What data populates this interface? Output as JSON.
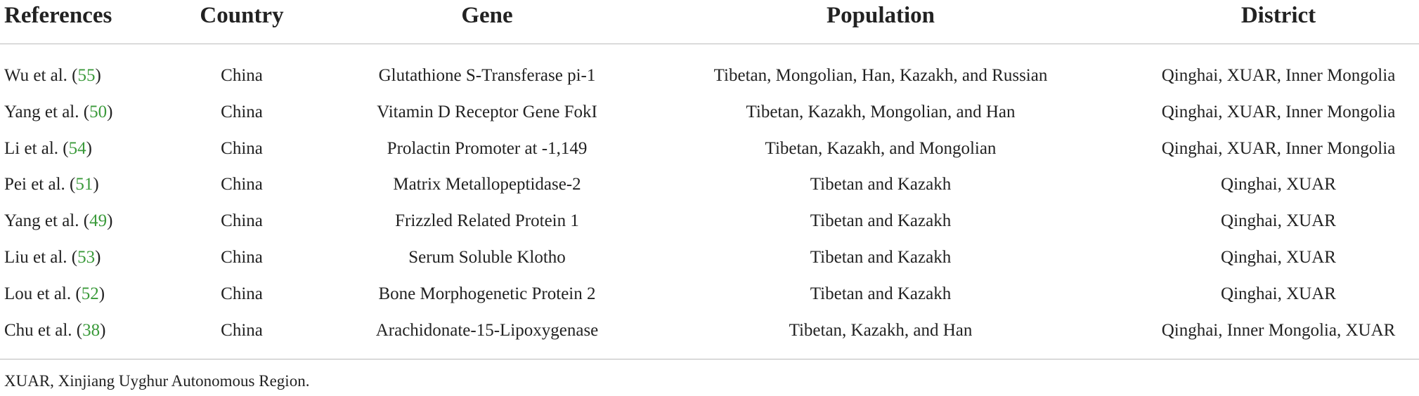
{
  "table": {
    "headers": [
      "References",
      "Country",
      "Gene",
      "Population",
      "District"
    ],
    "rows": [
      [
        [
          "Wu et al. (",
          "55",
          ")"
        ],
        "China",
        "Glutathione S-Transferase pi-1",
        "Tibetan, Mongolian, Han, Kazakh, and Russian",
        "Qinghai, XUAR, Inner Mongolia"
      ],
      [
        [
          "Yang et al. (",
          "50",
          ")"
        ],
        "China",
        "Vitamin D Receptor Gene FokI",
        "Tibetan, Kazakh, Mongolian, and Han",
        "Qinghai, XUAR, Inner Mongolia"
      ],
      [
        [
          "Li et al. (",
          "54",
          ")"
        ],
        "China",
        "Prolactin Promoter at -1,149",
        "Tibetan, Kazakh, and Mongolian",
        "Qinghai, XUAR, Inner Mongolia"
      ],
      [
        [
          "Pei et al. (",
          "51",
          ")"
        ],
        "China",
        "Matrix Metallopeptidase-2",
        "Tibetan and Kazakh",
        "Qinghai, XUAR"
      ],
      [
        [
          "Yang et al. (",
          "49",
          ")"
        ],
        "China",
        "Frizzled Related Protein 1",
        "Tibetan and Kazakh",
        "Qinghai, XUAR"
      ],
      [
        [
          "Liu et al. (",
          "53",
          ")"
        ],
        "China",
        "Serum Soluble Klotho",
        "Tibetan and Kazakh",
        "Qinghai, XUAR"
      ],
      [
        [
          "Lou et al. (",
          "52",
          ")"
        ],
        "China",
        "Bone Morphogenetic Protein 2",
        "Tibetan and Kazakh",
        "Qinghai, XUAR"
      ],
      [
        [
          "Chu et al. (",
          "38",
          ")"
        ],
        "China",
        "Arachidonate-15-Lipoxygenase",
        "Tibetan, Kazakh, and Han",
        "Qinghai, Inner Mongolia, XUAR"
      ]
    ]
  },
  "footnote": "XUAR, Xinjiang Uyghur Autonomous Region."
}
